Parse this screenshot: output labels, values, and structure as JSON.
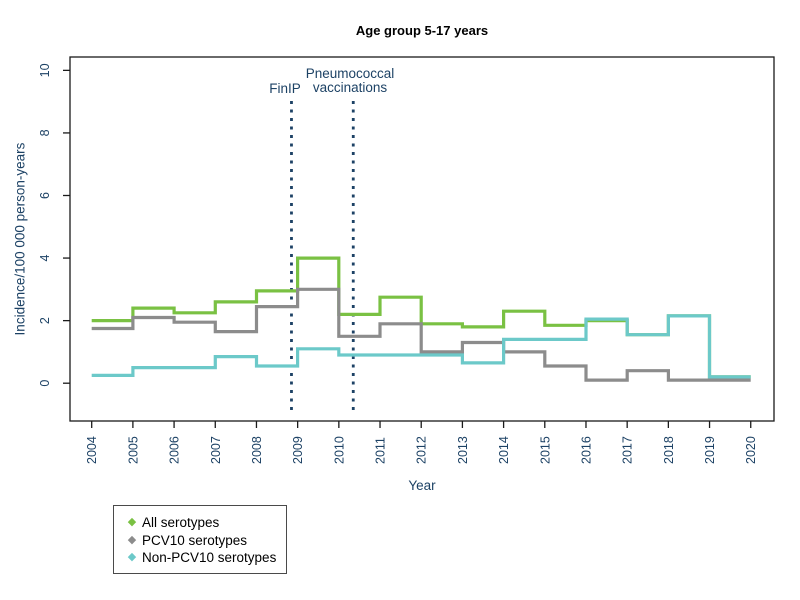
{
  "title": "Age group 5-17 years",
  "annotations": {
    "finip_label": "FinIP",
    "vaccinations_label_line1": "Pneumococcal",
    "vaccinations_label_line2": "vaccinations"
  },
  "axes": {
    "x_label": "Year",
    "y_label": "Incidence/100 000 person-years"
  },
  "colors": {
    "axis": "#1a1a1a",
    "text_navy": "#1d4265",
    "green": "#7ac143",
    "gray": "#8c8c8c",
    "teal": "#6cc9c9",
    "background": "#ffffff"
  },
  "legend": {
    "items": [
      {
        "id": "all-serotypes",
        "label": "All serotypes",
        "color": "#7ac143",
        "marker": "◆"
      },
      {
        "id": "pcv10-serotypes",
        "label": "PCV10 serotypes",
        "color": "#8c8c8c",
        "marker": "◆"
      },
      {
        "id": "non-pcv10-serotypes",
        "label": "Non-PCV10 serotypes",
        "color": "#6cc9c9",
        "marker": "◆"
      }
    ]
  },
  "chart_data": {
    "type": "line",
    "step": true,
    "title": "Age group 5-17 years",
    "xlabel": "Year",
    "ylabel": "Incidence/100 000 person-years",
    "ylim": [
      0,
      10
    ],
    "yticks": [
      0,
      2,
      4,
      6,
      8,
      10
    ],
    "x": [
      2004,
      2005,
      2006,
      2007,
      2008,
      2009,
      2010,
      2011,
      2012,
      2013,
      2014,
      2015,
      2016,
      2017,
      2018,
      2019,
      2020
    ],
    "series": [
      {
        "id": "all-serotypes",
        "name": "All serotypes",
        "color": "#7ac143",
        "values": [
          2.0,
          2.4,
          2.25,
          2.6,
          2.95,
          4.0,
          2.2,
          2.75,
          1.9,
          1.8,
          2.3,
          1.85,
          2.0,
          1.55,
          2.15,
          0.2,
          0.2
        ]
      },
      {
        "id": "pcv10-serotypes",
        "name": "PCV10 serotypes",
        "color": "#8c8c8c",
        "values": [
          1.75,
          2.1,
          1.95,
          1.65,
          2.45,
          3.0,
          1.5,
          1.9,
          1.0,
          1.3,
          1.0,
          0.55,
          0.1,
          0.4,
          0.1,
          0.1,
          0.1
        ]
      },
      {
        "id": "non-pcv10-serotypes",
        "name": "Non-PCV10 serotypes",
        "color": "#6cc9c9",
        "values": [
          0.25,
          0.5,
          0.5,
          0.85,
          0.55,
          1.1,
          0.9,
          0.9,
          0.9,
          0.65,
          1.4,
          1.4,
          2.05,
          1.55,
          2.15,
          0.2,
          0.2
        ]
      }
    ],
    "vlines": [
      {
        "id": "finip",
        "x": 2008.85,
        "label": "FinIP"
      },
      {
        "id": "vaccinations",
        "x": 2010.35,
        "label": "Pneumococcal vaccinations"
      }
    ],
    "legend_position": "bottom-left",
    "grid": false
  }
}
